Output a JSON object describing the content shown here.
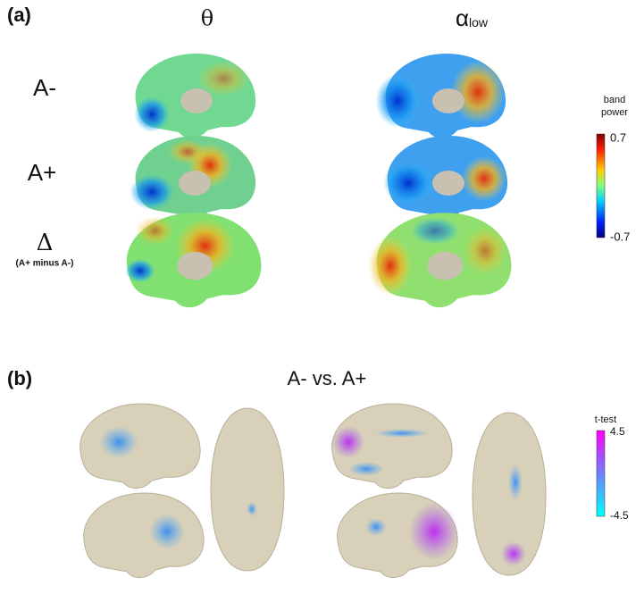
{
  "panel_a": {
    "label": "(a)",
    "columns": {
      "theta": "θ",
      "alpha": {
        "symbol": "α",
        "subscript": "low"
      }
    },
    "rows": [
      "A-",
      "A+",
      {
        "symbol": "Δ",
        "note": "(A+ minus A-)"
      }
    ],
    "colorbar": {
      "title": [
        "band",
        "power"
      ],
      "max": 0.7,
      "min": -0.7
    }
  },
  "panel_b": {
    "label": "(b)",
    "title": "A- vs. A+",
    "colorbar": {
      "title": "t-test",
      "max": 4.5,
      "min": -4.5
    }
  }
}
